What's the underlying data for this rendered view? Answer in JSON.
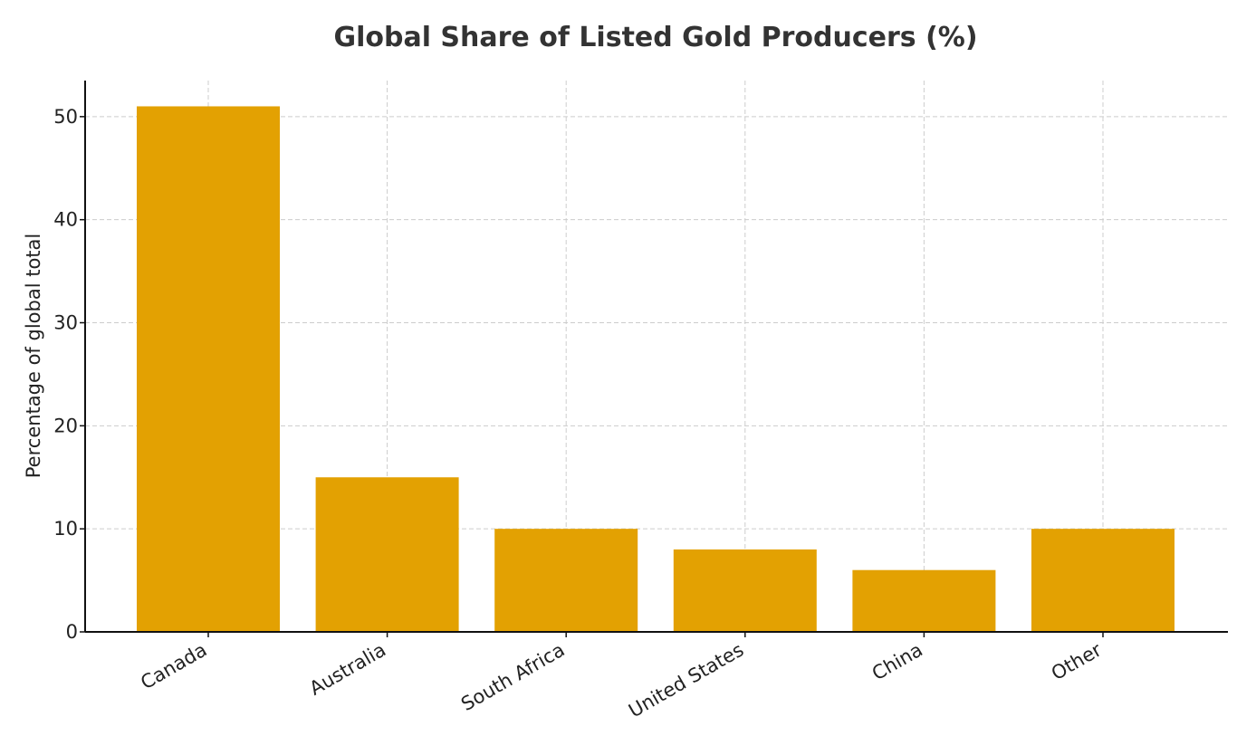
{
  "chart_data": {
    "type": "bar",
    "title": "Global Share of Listed Gold Producers (%)",
    "xlabel": "",
    "ylabel": "Percentage of global total",
    "categories": [
      "Canada",
      "Australia",
      "South Africa",
      "United States",
      "China",
      "Other"
    ],
    "values": [
      51,
      15,
      10,
      8,
      6,
      10
    ],
    "ylim": [
      0,
      53.5
    ],
    "yticks": [
      0,
      10,
      20,
      30,
      40,
      50
    ],
    "grid": true,
    "bar_color": "#e3a102"
  }
}
